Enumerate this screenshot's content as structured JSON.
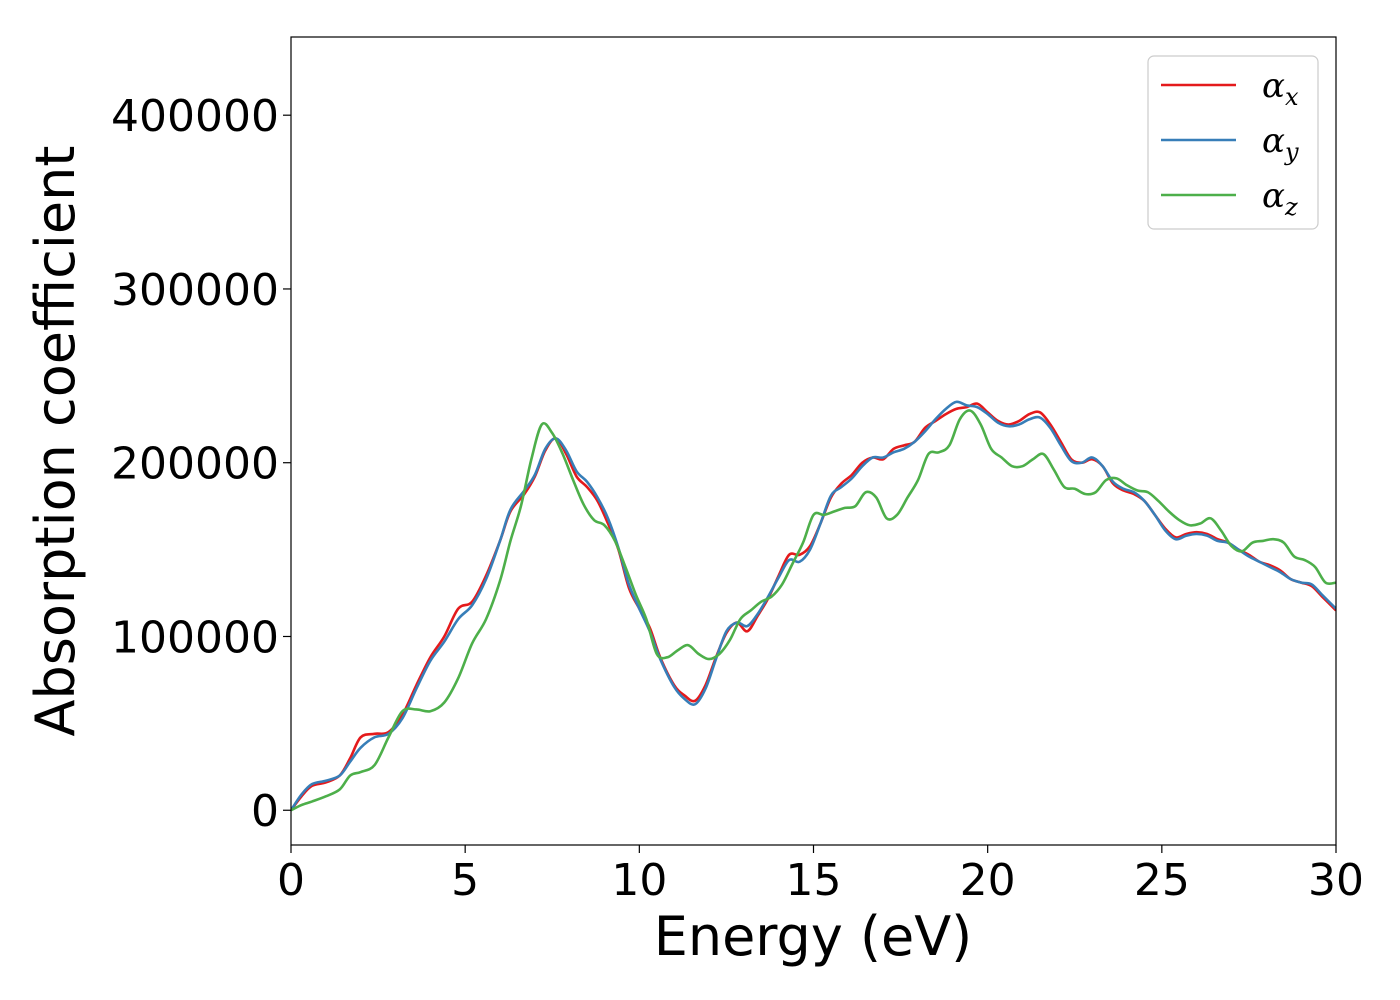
{
  "chart_data": {
    "type": "line",
    "title": "",
    "xlabel": "Energy (eV)",
    "ylabel": "Absorption coefficient",
    "xlim": [
      0,
      30
    ],
    "ylim": [
      -20000,
      445000
    ],
    "xticks": [
      0,
      5,
      10,
      15,
      20,
      25,
      30
    ],
    "xtick_labels": [
      "0",
      "5",
      "10",
      "15",
      "20",
      "25",
      "30"
    ],
    "yticks": [
      0,
      100000,
      200000,
      300000,
      400000
    ],
    "ytick_labels": [
      "0",
      "100000",
      "200000",
      "300000",
      "400000"
    ],
    "grid": false,
    "legend_position": "top-right",
    "series": [
      {
        "name": "α_x",
        "symbol": "α",
        "subscript": "x",
        "color": "#e41a1c",
        "points": [
          [
            0,
            0
          ],
          [
            0.3,
            8000
          ],
          [
            0.6,
            14000
          ],
          [
            1.0,
            16000
          ],
          [
            1.4,
            20000
          ],
          [
            1.7,
            30000
          ],
          [
            2.0,
            42000
          ],
          [
            2.4,
            44000
          ],
          [
            2.8,
            45000
          ],
          [
            3.2,
            55000
          ],
          [
            3.6,
            72000
          ],
          [
            4.0,
            88000
          ],
          [
            4.4,
            100000
          ],
          [
            4.8,
            116000
          ],
          [
            5.2,
            120000
          ],
          [
            5.6,
            135000
          ],
          [
            6.0,
            155000
          ],
          [
            6.3,
            172000
          ],
          [
            6.7,
            182000
          ],
          [
            7.0,
            192000
          ],
          [
            7.3,
            207000
          ],
          [
            7.6,
            214000
          ],
          [
            7.9,
            205000
          ],
          [
            8.2,
            192000
          ],
          [
            8.5,
            186000
          ],
          [
            8.8,
            178000
          ],
          [
            9.1,
            165000
          ],
          [
            9.4,
            150000
          ],
          [
            9.7,
            128000
          ],
          [
            10.0,
            116000
          ],
          [
            10.3,
            105000
          ],
          [
            10.6,
            88000
          ],
          [
            11.0,
            72000
          ],
          [
            11.3,
            66000
          ],
          [
            11.6,
            63000
          ],
          [
            11.9,
            72000
          ],
          [
            12.2,
            88000
          ],
          [
            12.5,
            102000
          ],
          [
            12.8,
            108000
          ],
          [
            13.1,
            103000
          ],
          [
            13.4,
            112000
          ],
          [
            13.7,
            122000
          ],
          [
            14.0,
            135000
          ],
          [
            14.3,
            147000
          ],
          [
            14.6,
            147000
          ],
          [
            14.9,
            152000
          ],
          [
            15.2,
            165000
          ],
          [
            15.5,
            180000
          ],
          [
            15.8,
            188000
          ],
          [
            16.1,
            193000
          ],
          [
            16.4,
            200000
          ],
          [
            16.7,
            203000
          ],
          [
            17.0,
            202000
          ],
          [
            17.3,
            208000
          ],
          [
            17.6,
            210000
          ],
          [
            17.9,
            212000
          ],
          [
            18.2,
            220000
          ],
          [
            18.5,
            224000
          ],
          [
            18.8,
            228000
          ],
          [
            19.1,
            231000
          ],
          [
            19.4,
            232000
          ],
          [
            19.7,
            234000
          ],
          [
            20.0,
            229000
          ],
          [
            20.3,
            224000
          ],
          [
            20.6,
            222000
          ],
          [
            20.9,
            224000
          ],
          [
            21.2,
            228000
          ],
          [
            21.5,
            229000
          ],
          [
            21.8,
            222000
          ],
          [
            22.1,
            212000
          ],
          [
            22.4,
            202000
          ],
          [
            22.7,
            200000
          ],
          [
            23.0,
            202000
          ],
          [
            23.3,
            198000
          ],
          [
            23.6,
            188000
          ],
          [
            23.9,
            184000
          ],
          [
            24.2,
            182000
          ],
          [
            24.5,
            178000
          ],
          [
            24.8,
            170000
          ],
          [
            25.1,
            162000
          ],
          [
            25.4,
            157000
          ],
          [
            25.7,
            159000
          ],
          [
            26.0,
            160000
          ],
          [
            26.3,
            159000
          ],
          [
            26.6,
            156000
          ],
          [
            26.9,
            154000
          ],
          [
            27.2,
            150000
          ],
          [
            27.5,
            147000
          ],
          [
            27.8,
            143000
          ],
          [
            28.1,
            141000
          ],
          [
            28.4,
            138000
          ],
          [
            28.7,
            133000
          ],
          [
            29.0,
            131000
          ],
          [
            29.3,
            129000
          ],
          [
            29.6,
            123000
          ],
          [
            30,
            115000
          ]
        ]
      },
      {
        "name": "α_y",
        "symbol": "α",
        "subscript": "y",
        "color": "#377eb8",
        "points": [
          [
            0,
            0
          ],
          [
            0.3,
            9000
          ],
          [
            0.6,
            15000
          ],
          [
            1.0,
            17000
          ],
          [
            1.4,
            20000
          ],
          [
            1.7,
            28000
          ],
          [
            2.0,
            36000
          ],
          [
            2.4,
            42000
          ],
          [
            2.8,
            44000
          ],
          [
            3.2,
            53000
          ],
          [
            3.6,
            70000
          ],
          [
            4.0,
            86000
          ],
          [
            4.4,
            97000
          ],
          [
            4.8,
            110000
          ],
          [
            5.2,
            118000
          ],
          [
            5.6,
            133000
          ],
          [
            6.0,
            155000
          ],
          [
            6.3,
            173000
          ],
          [
            6.7,
            184000
          ],
          [
            7.0,
            193000
          ],
          [
            7.3,
            208000
          ],
          [
            7.6,
            214000
          ],
          [
            7.9,
            207000
          ],
          [
            8.2,
            195000
          ],
          [
            8.5,
            189000
          ],
          [
            8.8,
            180000
          ],
          [
            9.1,
            168000
          ],
          [
            9.4,
            151000
          ],
          [
            9.7,
            130000
          ],
          [
            10.0,
            116000
          ],
          [
            10.3,
            103000
          ],
          [
            10.6,
            87000
          ],
          [
            11.0,
            71000
          ],
          [
            11.3,
            64000
          ],
          [
            11.6,
            61000
          ],
          [
            11.9,
            70000
          ],
          [
            12.2,
            87000
          ],
          [
            12.5,
            103000
          ],
          [
            12.8,
            108000
          ],
          [
            13.1,
            106000
          ],
          [
            13.4,
            113000
          ],
          [
            13.7,
            123000
          ],
          [
            14.0,
            134000
          ],
          [
            14.3,
            144000
          ],
          [
            14.6,
            143000
          ],
          [
            14.9,
            150000
          ],
          [
            15.2,
            165000
          ],
          [
            15.5,
            181000
          ],
          [
            15.8,
            186000
          ],
          [
            16.1,
            191000
          ],
          [
            16.4,
            198000
          ],
          [
            16.7,
            203000
          ],
          [
            17.0,
            203000
          ],
          [
            17.3,
            206000
          ],
          [
            17.6,
            208000
          ],
          [
            17.9,
            212000
          ],
          [
            18.2,
            218000
          ],
          [
            18.5,
            225000
          ],
          [
            18.8,
            231000
          ],
          [
            19.1,
            235000
          ],
          [
            19.4,
            233000
          ],
          [
            19.7,
            232000
          ],
          [
            20.0,
            228000
          ],
          [
            20.3,
            223000
          ],
          [
            20.6,
            221000
          ],
          [
            20.9,
            222000
          ],
          [
            21.2,
            225000
          ],
          [
            21.5,
            226000
          ],
          [
            21.8,
            220000
          ],
          [
            22.1,
            210000
          ],
          [
            22.4,
            201000
          ],
          [
            22.7,
            200000
          ],
          [
            23.0,
            203000
          ],
          [
            23.3,
            198000
          ],
          [
            23.6,
            189000
          ],
          [
            23.9,
            185000
          ],
          [
            24.2,
            183000
          ],
          [
            24.5,
            178000
          ],
          [
            24.8,
            170000
          ],
          [
            25.1,
            161000
          ],
          [
            25.4,
            156000
          ],
          [
            25.7,
            158000
          ],
          [
            26.0,
            159000
          ],
          [
            26.3,
            158000
          ],
          [
            26.6,
            155000
          ],
          [
            26.9,
            154000
          ],
          [
            27.2,
            150000
          ],
          [
            27.5,
            146000
          ],
          [
            27.8,
            143000
          ],
          [
            28.1,
            140000
          ],
          [
            28.4,
            137000
          ],
          [
            28.7,
            133000
          ],
          [
            29.0,
            131000
          ],
          [
            29.3,
            130000
          ],
          [
            29.6,
            124000
          ],
          [
            30,
            116000
          ]
        ]
      },
      {
        "name": "α_z",
        "symbol": "α",
        "subscript": "z",
        "color": "#4daf4a",
        "points": [
          [
            0,
            0
          ],
          [
            0.3,
            3000
          ],
          [
            0.6,
            5000
          ],
          [
            1.0,
            8000
          ],
          [
            1.4,
            12000
          ],
          [
            1.7,
            20000
          ],
          [
            2.0,
            22000
          ],
          [
            2.4,
            26000
          ],
          [
            2.8,
            42000
          ],
          [
            3.2,
            57000
          ],
          [
            3.6,
            58000
          ],
          [
            4.0,
            57000
          ],
          [
            4.4,
            62000
          ],
          [
            4.8,
            76000
          ],
          [
            5.2,
            96000
          ],
          [
            5.6,
            110000
          ],
          [
            6.0,
            132000
          ],
          [
            6.3,
            155000
          ],
          [
            6.6,
            175000
          ],
          [
            6.9,
            202000
          ],
          [
            7.2,
            222000
          ],
          [
            7.5,
            217000
          ],
          [
            7.8,
            205000
          ],
          [
            8.1,
            190000
          ],
          [
            8.4,
            176000
          ],
          [
            8.7,
            167000
          ],
          [
            9.0,
            164000
          ],
          [
            9.3,
            155000
          ],
          [
            9.6,
            140000
          ],
          [
            9.9,
            124000
          ],
          [
            10.2,
            110000
          ],
          [
            10.5,
            90000
          ],
          [
            10.8,
            88000
          ],
          [
            11.1,
            92000
          ],
          [
            11.4,
            95000
          ],
          [
            11.7,
            90000
          ],
          [
            12.0,
            87000
          ],
          [
            12.3,
            90000
          ],
          [
            12.6,
            98000
          ],
          [
            12.9,
            110000
          ],
          [
            13.2,
            115000
          ],
          [
            13.5,
            120000
          ],
          [
            13.8,
            123000
          ],
          [
            14.1,
            130000
          ],
          [
            14.4,
            142000
          ],
          [
            14.7,
            154000
          ],
          [
            15.0,
            170000
          ],
          [
            15.3,
            170000
          ],
          [
            15.6,
            172000
          ],
          [
            15.9,
            174000
          ],
          [
            16.2,
            175000
          ],
          [
            16.5,
            183000
          ],
          [
            16.8,
            180000
          ],
          [
            17.1,
            168000
          ],
          [
            17.4,
            170000
          ],
          [
            17.7,
            180000
          ],
          [
            18.0,
            190000
          ],
          [
            18.3,
            205000
          ],
          [
            18.6,
            206000
          ],
          [
            18.9,
            210000
          ],
          [
            19.2,
            225000
          ],
          [
            19.5,
            230000
          ],
          [
            19.8,
            222000
          ],
          [
            20.1,
            208000
          ],
          [
            20.4,
            203000
          ],
          [
            20.7,
            198000
          ],
          [
            21.0,
            198000
          ],
          [
            21.3,
            202000
          ],
          [
            21.6,
            205000
          ],
          [
            21.9,
            196000
          ],
          [
            22.2,
            186000
          ],
          [
            22.5,
            185000
          ],
          [
            22.8,
            182000
          ],
          [
            23.1,
            183000
          ],
          [
            23.4,
            190000
          ],
          [
            23.7,
            191000
          ],
          [
            24.0,
            187000
          ],
          [
            24.3,
            184000
          ],
          [
            24.6,
            183000
          ],
          [
            24.9,
            178000
          ],
          [
            25.2,
            172000
          ],
          [
            25.5,
            167000
          ],
          [
            25.8,
            164000
          ],
          [
            26.1,
            165000
          ],
          [
            26.4,
            168000
          ],
          [
            26.7,
            161000
          ],
          [
            27.0,
            152000
          ],
          [
            27.3,
            149000
          ],
          [
            27.6,
            154000
          ],
          [
            27.9,
            155000
          ],
          [
            28.2,
            156000
          ],
          [
            28.5,
            154000
          ],
          [
            28.8,
            146000
          ],
          [
            29.1,
            144000
          ],
          [
            29.4,
            140000
          ],
          [
            29.7,
            131000
          ],
          [
            30,
            131000
          ]
        ]
      }
    ]
  }
}
